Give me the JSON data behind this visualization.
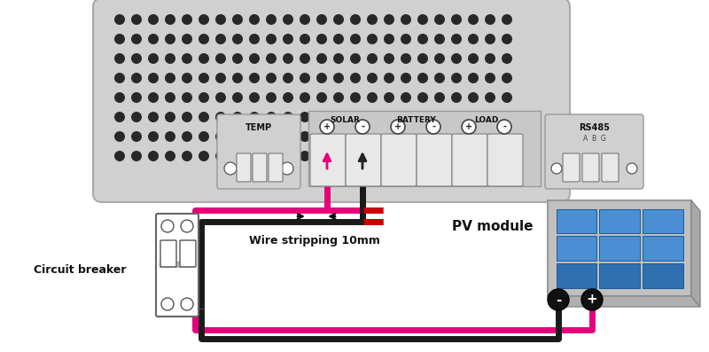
{
  "bg_color": "#ffffff",
  "ctrl_face": "#d0d0d0",
  "ctrl_edge": "#aaaaaa",
  "dot_color": "#282828",
  "wire_pink": "#e6007a",
  "wire_black": "#1a1a1a",
  "wire_red": "#cc0000",
  "cell_blue": "#4a8fd4",
  "cell_blue_dark": "#3070b0",
  "panel_frame": "#c0c0c0",
  "panel_side": "#a8a8a8",
  "cb_face": "#ffffff",
  "terminal_face": "#d8d8d8",
  "terminal_block_face": "#e8e8e8",
  "terminal_labels": [
    "SOLAR",
    "BATTERY",
    "LOAD"
  ],
  "signs": [
    "+",
    "-",
    "+",
    "-",
    "+",
    "-"
  ],
  "temp_label": "TEMP",
  "rs485_label": "RS485",
  "rs485_sub": "A  B  G",
  "cb_label": "Circuit breaker",
  "strip_label": "Wire stripping 10mm",
  "pv_label": "PV module",
  "figsize": [
    8.0,
    3.97
  ],
  "dpi": 100
}
